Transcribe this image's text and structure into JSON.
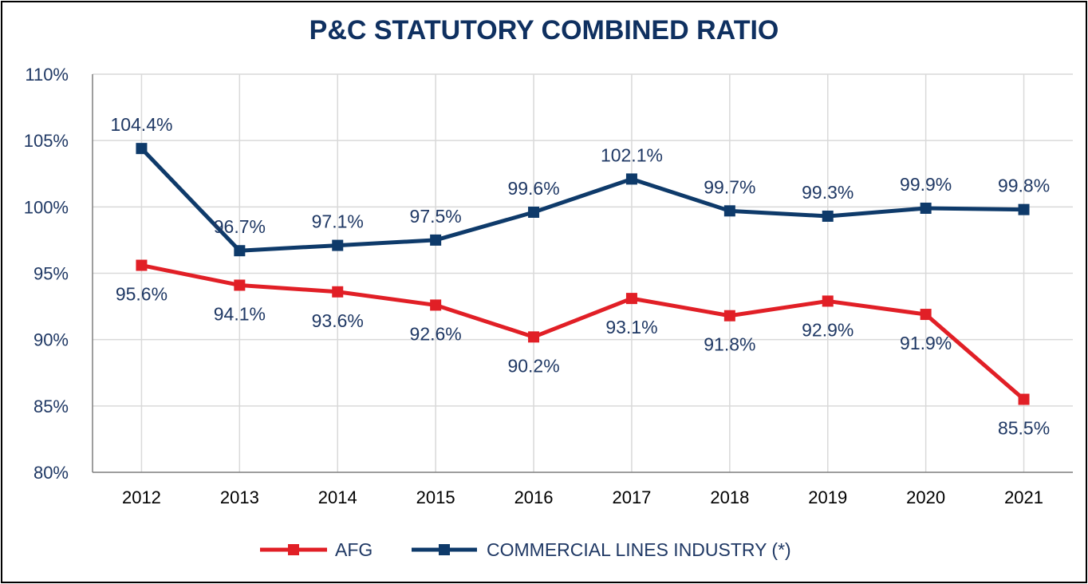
{
  "colors": {
    "title": "#0f3060",
    "axis_text": "#1f3864",
    "label_text": "#1f3864",
    "grid": "#d9d9d9",
    "axis": "#7f7f7f"
  },
  "chart_data": {
    "type": "line",
    "title": "P&C STATUTORY COMBINED RATIO",
    "xlabel": "",
    "ylabel": "",
    "ylim": [
      80,
      110
    ],
    "ytick_values": [
      80,
      85,
      90,
      95,
      100,
      105,
      110
    ],
    "ytick_labels": [
      "80%",
      "85%",
      "90%",
      "95%",
      "100%",
      "105%",
      "110%"
    ],
    "categories": [
      "2012",
      "2013",
      "2014",
      "2015",
      "2016",
      "2017",
      "2018",
      "2019",
      "2020",
      "2021"
    ],
    "grid": true,
    "legend_position": "bottom",
    "series": [
      {
        "name": "AFG",
        "color": "#e11f26",
        "marker": "square",
        "label_position": "below",
        "values": [
          95.6,
          94.1,
          93.6,
          92.6,
          90.2,
          93.1,
          91.8,
          92.9,
          91.9,
          85.5
        ],
        "labels": [
          "95.6%",
          "94.1%",
          "93.6%",
          "92.6%",
          "90.2%",
          "93.1%",
          "91.8%",
          "92.9%",
          "91.9%",
          "85.5%"
        ]
      },
      {
        "name": "COMMERCIAL LINES INDUSTRY (*)",
        "color": "#0e3a6a",
        "marker": "square",
        "label_position": "above",
        "values": [
          104.4,
          96.7,
          97.1,
          97.5,
          99.6,
          102.1,
          99.7,
          99.3,
          99.9,
          99.8
        ],
        "labels": [
          "104.4%",
          "96.7%",
          "97.1%",
          "97.5%",
          "99.6%",
          "102.1%",
          "99.7%",
          "99.3%",
          "99.9%",
          "99.8%"
        ]
      }
    ]
  }
}
